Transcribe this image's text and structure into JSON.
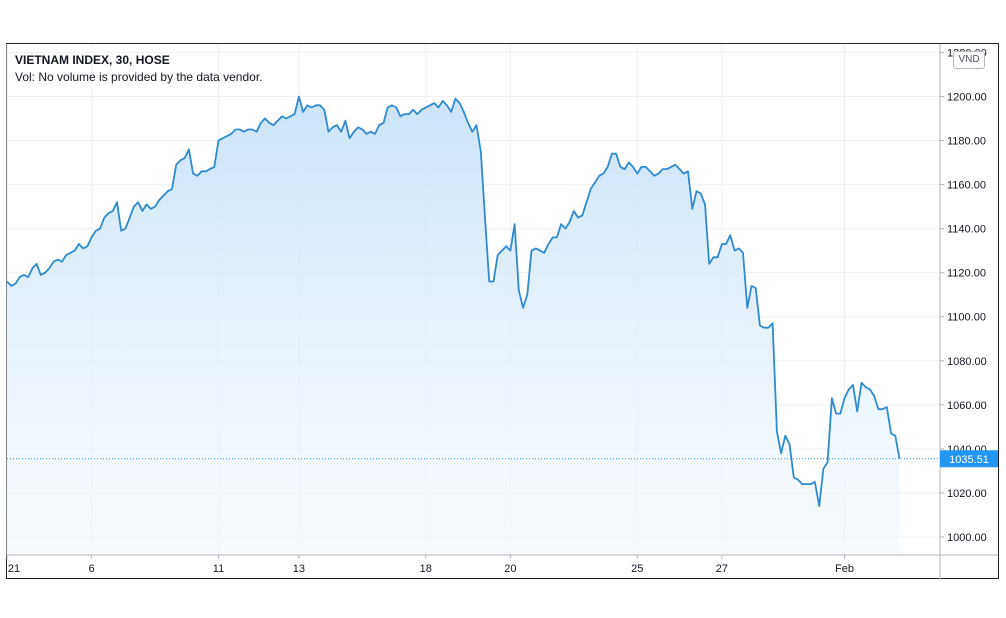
{
  "header": {
    "title": "VIETNAM INDEX, 30, HOSE",
    "volume_note": "Vol: No volume is provided by the data vendor.",
    "currency": "VND"
  },
  "last_price_label": "1035.51",
  "colors": {
    "line": "#2e8bd0",
    "fill_top": "#c9e2f8",
    "fill_bottom": "#f4f9fe",
    "last_price": "#2196f3",
    "grid": "#eef0f3"
  },
  "chart_data": {
    "type": "area",
    "title": "VIETNAM INDEX, 30, HOSE",
    "ylim": [
      995,
      1222
    ],
    "y_ticks": [
      1000,
      1020,
      1040,
      1060,
      1080,
      1100,
      1120,
      1140,
      1160,
      1180,
      1200,
      1220
    ],
    "y_tick_labels": [
      "1000.00",
      "1020.00",
      "1040.00",
      "1060.00",
      "1080.00",
      "1100.00",
      "1120.00",
      "1140.00",
      "1160.00",
      "1180.00",
      "1200.00",
      "1220.00"
    ],
    "x_ticks": [
      {
        "label": "21",
        "index": 0
      },
      {
        "label": "6",
        "index": 20
      },
      {
        "label": "11",
        "index": 50
      },
      {
        "label": "13",
        "index": 69
      },
      {
        "label": "18",
        "index": 99
      },
      {
        "label": "20",
        "index": 119
      },
      {
        "label": "25",
        "index": 149
      },
      {
        "label": "27",
        "index": 169
      },
      {
        "label": "Feb",
        "index": 198
      }
    ],
    "grid": true,
    "last_value": 1035.51,
    "values": [
      1116,
      1114,
      1115,
      1118,
      1119,
      1118,
      1122,
      1124,
      1119,
      1120,
      1122,
      1125,
      1126,
      1125,
      1128,
      1129,
      1130,
      1133,
      1131,
      1132,
      1136,
      1139,
      1140,
      1145,
      1147,
      1148,
      1152,
      1139,
      1140,
      1145,
      1150,
      1152,
      1148,
      1151,
      1149,
      1150,
      1153,
      1155,
      1157,
      1158,
      1169,
      1171,
      1172,
      1176,
      1165,
      1164,
      1166,
      1166,
      1167,
      1168,
      1180,
      1181,
      1182,
      1183,
      1185,
      1185,
      1184,
      1185,
      1185,
      1184,
      1188,
      1190,
      1188,
      1187,
      1189,
      1191,
      1190,
      1191,
      1192,
      1200,
      1193,
      1196,
      1195,
      1196,
      1196,
      1194,
      1184,
      1186,
      1187,
      1184,
      1189,
      1181,
      1184,
      1186,
      1185,
      1183,
      1184,
      1183,
      1187,
      1188,
      1195,
      1196,
      1195,
      1191,
      1192,
      1192,
      1194,
      1192,
      1194,
      1195,
      1196,
      1197,
      1195,
      1198,
      1196,
      1193,
      1199,
      1197,
      1193,
      1188,
      1184,
      1187,
      1175,
      1145,
      1116,
      1116,
      1128,
      1130,
      1132,
      1130,
      1142,
      1112,
      1104,
      1110,
      1130,
      1131,
      1130,
      1129,
      1133,
      1136,
      1136,
      1142,
      1140,
      1143,
      1148,
      1145,
      1146,
      1152,
      1158,
      1161,
      1164,
      1165,
      1168,
      1174,
      1174,
      1168,
      1167,
      1170,
      1168,
      1165,
      1168,
      1168,
      1166,
      1164,
      1165,
      1167,
      1167,
      1168,
      1169,
      1167,
      1165,
      1166,
      1149,
      1157,
      1156,
      1151,
      1124,
      1127,
      1127,
      1133,
      1133,
      1137,
      1130,
      1131,
      1129,
      1104,
      1114,
      1113,
      1096,
      1095,
      1095,
      1097,
      1048,
      1038,
      1046,
      1042,
      1027,
      1026,
      1024,
      1024,
      1024,
      1025,
      1014,
      1031,
      1034,
      1063,
      1056,
      1056,
      1063,
      1067,
      1069,
      1057,
      1070,
      1068,
      1067,
      1064,
      1058,
      1058,
      1059,
      1047,
      1046,
      1035.51
    ]
  }
}
